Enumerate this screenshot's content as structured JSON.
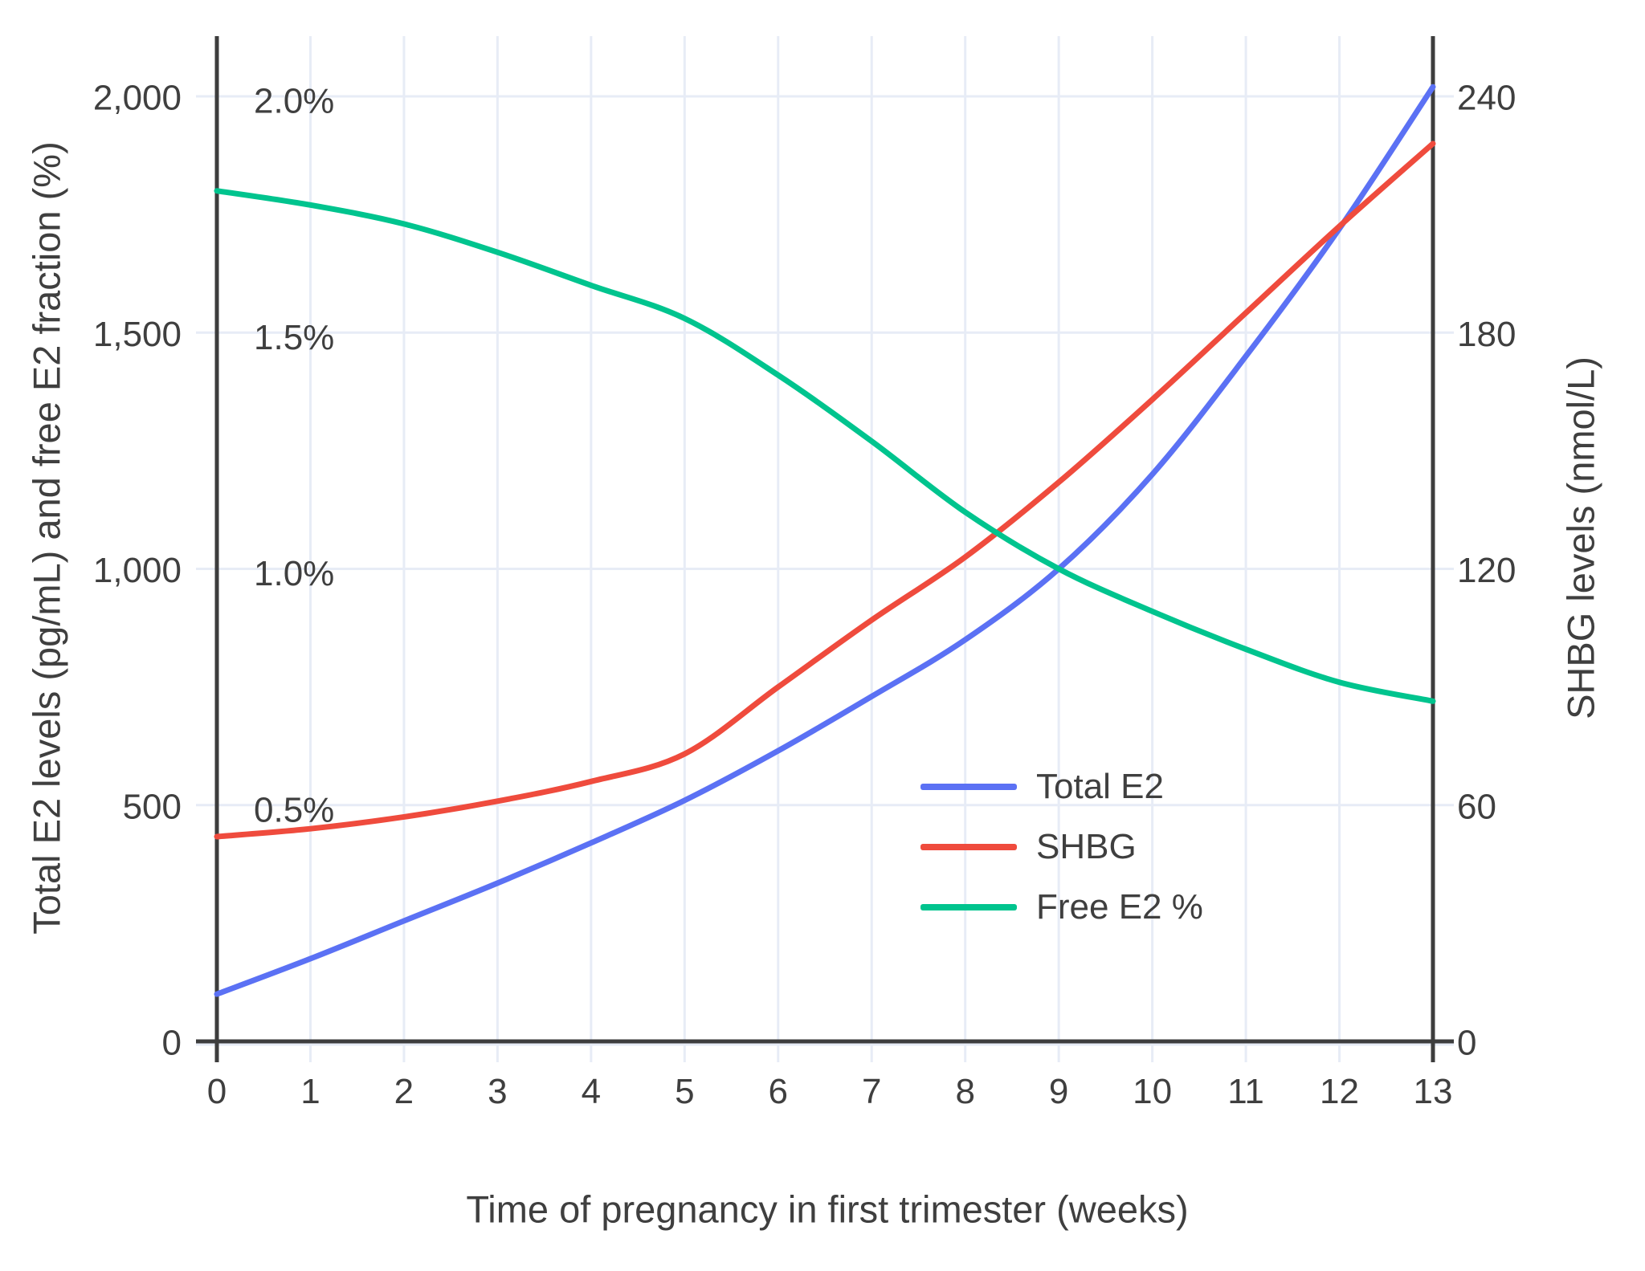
{
  "chart_data": {
    "type": "line",
    "title": "",
    "xlabel": "Time of pregnancy in first trimester (weeks)",
    "ylabel_left": "Total E2 levels (pg/mL) and free E2 fraction (%)",
    "ylabel_right": "SHBG levels (nmol/L)",
    "x": [
      0,
      1,
      2,
      3,
      4,
      5,
      6,
      7,
      8,
      9,
      10,
      11,
      12,
      13
    ],
    "x_tick_labels": [
      "0",
      "1",
      "2",
      "3",
      "4",
      "5",
      "6",
      "7",
      "8",
      "9",
      "10",
      "11",
      "12",
      "13"
    ],
    "left_axis": {
      "tick_labels": [
        "0",
        "500",
        "1,000",
        "1,500",
        "2,000"
      ],
      "tick_values": [
        0,
        500,
        1000,
        1500,
        2000
      ],
      "range": [
        0,
        2125
      ]
    },
    "percent_labels": {
      "labels": [
        "0.5%",
        "1.0%",
        "1.5%",
        "2.0%"
      ],
      "at_left_values": [
        500,
        1000,
        1500,
        2000
      ]
    },
    "right_axis": {
      "tick_labels": [
        "0",
        "60",
        "120",
        "180",
        "240"
      ],
      "tick_values": [
        0,
        60,
        120,
        180,
        240
      ],
      "range": [
        0,
        255
      ]
    },
    "series": [
      {
        "name": "Total E2",
        "axis": "left",
        "unit": "pg/mL",
        "color": "#5B71F4",
        "values": [
          100,
          175,
          255,
          335,
          420,
          510,
          615,
          730,
          850,
          1000,
          1200,
          1450,
          1720,
          2020
        ]
      },
      {
        "name": "SHBG",
        "axis": "right",
        "unit": "nmol/L",
        "color": "#EF4B3D",
        "values": [
          52,
          54,
          57,
          61,
          66,
          73,
          90,
          107,
          123,
          142,
          163,
          185,
          207,
          228
        ]
      },
      {
        "name": "Free E2 %",
        "axis": "left-percent",
        "unit": "%",
        "color": "#00C48E",
        "values": [
          1.8,
          1.77,
          1.73,
          1.67,
          1.6,
          1.53,
          1.41,
          1.27,
          1.12,
          1.0,
          0.91,
          0.83,
          0.76,
          0.72
        ]
      }
    ],
    "legend": {
      "position": "inside right-center",
      "entries": [
        "Total E2",
        "SHBG",
        "Free E2 %"
      ]
    },
    "grid": true
  },
  "styles": {
    "background": "#FFFFFF",
    "grid_color": "#E7ECF6",
    "axis_color": "#3D3D3D",
    "text_color": "#3F3F3F"
  }
}
